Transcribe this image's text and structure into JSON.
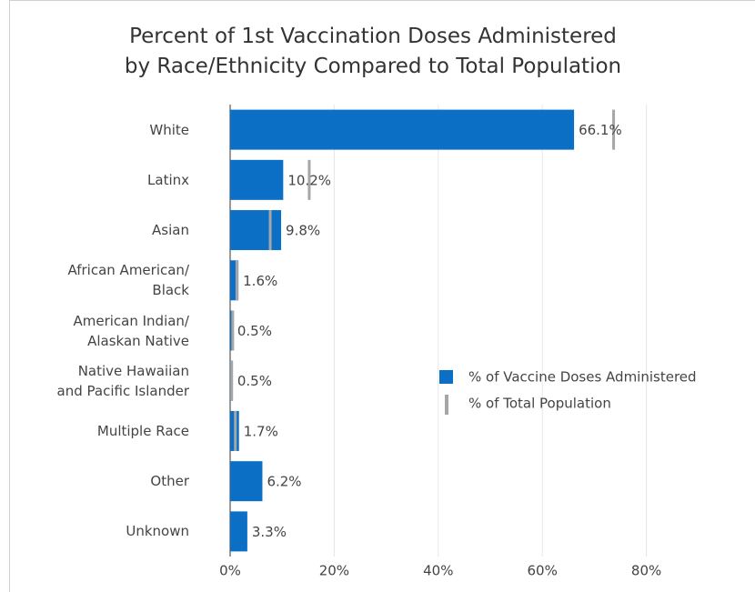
{
  "chart_data": {
    "type": "bar",
    "orientation": "horizontal",
    "title": "Percent of 1st Vaccination Doses Administered\nby Race/Ethnicity Compared to Total Population",
    "categories": [
      "White",
      "Latinx",
      "Asian",
      "African American/\nBlack",
      "American Indian/\nAlaskan Native",
      "Native Hawaiian\nand Pacific Islander",
      "Multiple Race",
      "Other",
      "Unknown"
    ],
    "series": [
      {
        "name": "% of Vaccine Doses Administered",
        "color": "#0b6fc6",
        "values": [
          66.1,
          10.2,
          9.8,
          1.6,
          0.5,
          0.5,
          1.7,
          6.2,
          3.3
        ],
        "value_labels": [
          "66.1%",
          "10.2%",
          "9.8%",
          "1.6%",
          "0.5%",
          "0.5%",
          "1.7%",
          "6.2%",
          "3.3%"
        ]
      },
      {
        "name": "% of Total Population",
        "color": "#a6a6a6",
        "marker": "line",
        "values": [
          73.7,
          15.2,
          7.7,
          1.3,
          0.5,
          0.3,
          1.0,
          null,
          null
        ]
      }
    ],
    "xlim": [
      0,
      100
    ],
    "xticks": [
      {
        "value": 0,
        "label": "0%"
      },
      {
        "value": 20,
        "label": "20%"
      },
      {
        "value": 40,
        "label": "40%"
      },
      {
        "value": 60,
        "label": "60%"
      },
      {
        "value": 80,
        "label": "80%"
      }
    ],
    "grid": true,
    "legend": "right"
  }
}
